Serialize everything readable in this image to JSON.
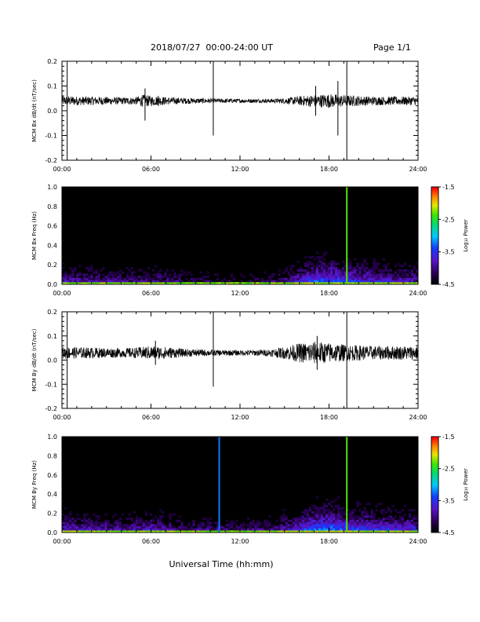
{
  "header": {
    "title": "2018/07/27  00:00-24:00 UT",
    "page": "Page 1/1"
  },
  "chart_data": [
    {
      "type": "line",
      "ylabel": "MCM Bx dB/dt (nT/sec)",
      "ylim": [
        -0.2,
        0.2
      ],
      "yticks": [
        "0.2",
        "0.1",
        "0.0",
        "-0.1",
        "-0.2"
      ],
      "xlim": [
        0,
        24
      ],
      "xticks": [
        "00:00",
        "06:00",
        "12:00",
        "18:00",
        "24:00"
      ],
      "baseline": 0.04,
      "series": [
        {
          "noise_profile": {
            "hours": [
              0,
              2,
              4,
              5,
              5.5,
              6,
              6.5,
              7,
              8,
              10,
              12,
              14,
              15,
              16,
              17,
              18,
              19,
              20,
              21,
              22,
              24
            ],
            "amplitude": [
              0.012,
              0.011,
              0.009,
              0.01,
              0.016,
              0.013,
              0.012,
              0.01,
              0.008,
              0.006,
              0.005,
              0.005,
              0.007,
              0.012,
              0.016,
              0.018,
              0.015,
              0.013,
              0.011,
              0.011,
              0.011
            ]
          },
          "events": [
            {
              "hour": 0.35,
              "min": -0.2,
              "max": 0.2
            },
            {
              "hour": 5.6,
              "min": -0.04,
              "max": 0.09
            },
            {
              "hour": 6.5,
              "min": 0.02,
              "max": 0.06
            },
            {
              "hour": 10.2,
              "min": -0.1,
              "max": 0.2
            },
            {
              "hour": 17.1,
              "min": -0.02,
              "max": 0.1
            },
            {
              "hour": 18.6,
              "min": -0.1,
              "max": 0.12
            },
            {
              "hour": 19.2,
              "min": -0.2,
              "max": 0.2
            }
          ]
        }
      ]
    },
    {
      "type": "heatmap",
      "ylabel": "MCM Bx Freq (Hz)",
      "ylim": [
        0,
        1
      ],
      "yticks": [
        "1.0",
        "0.8",
        "0.6",
        "0.4",
        "0.2",
        "0.0"
      ],
      "xlim": [
        0,
        24
      ],
      "xticks": [
        "00:00",
        "06:00",
        "12:00",
        "18:00",
        "24:00"
      ],
      "colorbar": {
        "label": "Log₁₀ Power",
        "ticks": [
          "-1.5",
          "-2.5",
          "-3.5",
          "-4.5"
        ],
        "range": [
          -4.5,
          -1.5
        ]
      },
      "activity": {
        "hours": [
          0,
          2,
          4,
          6,
          8,
          10,
          12,
          14,
          15,
          16,
          17,
          18,
          19,
          20,
          22,
          24
        ],
        "level": [
          0.55,
          0.5,
          0.45,
          0.5,
          0.4,
          0.35,
          0.3,
          0.35,
          0.45,
          0.65,
          0.8,
          0.85,
          0.75,
          0.7,
          0.6,
          0.55
        ]
      },
      "vertical_lines": [
        {
          "hour": 19.2,
          "power": -2.3
        }
      ]
    },
    {
      "type": "line",
      "ylabel": "MCM By dB/dt (nT/sec)",
      "ylim": [
        -0.2,
        0.2
      ],
      "yticks": [
        "0.2",
        "0.1",
        "0.0",
        "-0.1",
        "-0.2"
      ],
      "xlim": [
        0,
        24
      ],
      "xticks": [
        "00:00",
        "06:00",
        "12:00",
        "18:00",
        "24:00"
      ],
      "baseline": 0.03,
      "series": [
        {
          "noise_profile": {
            "hours": [
              0,
              2,
              4,
              5,
              6,
              7,
              8,
              10,
              12,
              14,
              15,
              16,
              17,
              18,
              19,
              20,
              21,
              22,
              24
            ],
            "amplitude": [
              0.016,
              0.014,
              0.012,
              0.014,
              0.018,
              0.016,
              0.011,
              0.008,
              0.007,
              0.009,
              0.016,
              0.025,
              0.03,
              0.026,
              0.022,
              0.02,
              0.018,
              0.018,
              0.018
            ]
          },
          "events": [
            {
              "hour": 0.35,
              "min": -0.2,
              "max": 0.2
            },
            {
              "hour": 6.3,
              "min": -0.02,
              "max": 0.08
            },
            {
              "hour": 10.2,
              "min": -0.11,
              "max": 0.2
            },
            {
              "hour": 17.2,
              "min": -0.04,
              "max": 0.1
            },
            {
              "hour": 19.2,
              "min": -0.2,
              "max": 0.2
            }
          ]
        }
      ]
    },
    {
      "type": "heatmap",
      "ylabel": "MCM By Freq (Hz)",
      "ylim": [
        0,
        1
      ],
      "yticks": [
        "1.0",
        "0.8",
        "0.6",
        "0.4",
        "0.2",
        "0.0"
      ],
      "xlim": [
        0,
        24
      ],
      "xticks": [
        "00:00",
        "06:00",
        "12:00",
        "18:00",
        "24:00"
      ],
      "colorbar": {
        "label": "Log₁₀ Power",
        "ticks": [
          "-1.5",
          "-2.5",
          "-3.5",
          "-4.5"
        ],
        "range": [
          -4.5,
          -1.5
        ]
      },
      "activity": {
        "hours": [
          0,
          2,
          4,
          6,
          8,
          10,
          12,
          14,
          15,
          16,
          17,
          18,
          19,
          20,
          22,
          24
        ],
        "level": [
          0.6,
          0.55,
          0.5,
          0.6,
          0.45,
          0.45,
          0.4,
          0.45,
          0.55,
          0.7,
          0.85,
          0.9,
          0.8,
          0.75,
          0.7,
          0.65
        ]
      },
      "vertical_lines": [
        {
          "hour": 10.6,
          "power": -3.2
        },
        {
          "hour": 19.2,
          "power": -2.3
        }
      ]
    }
  ],
  "xlabel": "Universal Time (hh:mm)",
  "colors": {
    "axis": "#000000",
    "trace": "#000000",
    "background": "#ffffff"
  }
}
